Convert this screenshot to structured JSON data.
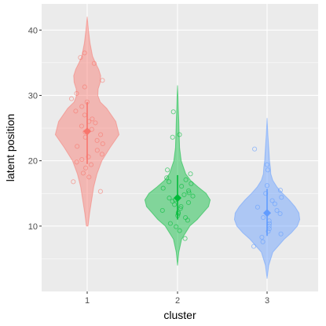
{
  "chart_data": {
    "type": "violin",
    "xlabel": "cluster",
    "ylabel": "latent position",
    "categories": [
      "1",
      "2",
      "3"
    ],
    "ylim": [
      0,
      44
    ],
    "yticks": [
      10,
      20,
      30,
      40
    ],
    "grid": true,
    "legend": "none",
    "background": "#EBEBEB",
    "grid_color": "#FFFFFF",
    "series": [
      {
        "category": "1",
        "color": "#F8766D",
        "mean": 24.5,
        "interval": [
          19.5,
          29.0
        ],
        "density_y": [
          10,
          12,
          14,
          16,
          18,
          20,
          22,
          24,
          26,
          28,
          29,
          30,
          31,
          32,
          33,
          34,
          35,
          36,
          38,
          40,
          42
        ],
        "density_width": [
          0.02,
          0.06,
          0.11,
          0.16,
          0.24,
          0.36,
          0.56,
          0.78,
          0.7,
          0.48,
          0.32,
          0.26,
          0.27,
          0.32,
          0.33,
          0.28,
          0.2,
          0.13,
          0.07,
          0.03,
          0.0
        ],
        "points": [
          15.3,
          16.8,
          17.5,
          18.1,
          18.9,
          19.4,
          19.8,
          20.2,
          20.6,
          21.0,
          21.6,
          22.2,
          22.6,
          23.1,
          23.6,
          24.0,
          24.4,
          24.8,
          25.3,
          25.8,
          26.0,
          26.4,
          27.0,
          27.6,
          28.3,
          29.0,
          29.5,
          30.3,
          31.3,
          32.3,
          34.9,
          35.8,
          36.5
        ]
      },
      {
        "category": "2",
        "color": "#00BA38",
        "mean": 14.3,
        "interval": [
          11.0,
          17.8
        ],
        "density_y": [
          4,
          6,
          8,
          10,
          11,
          12,
          13,
          14,
          15,
          16,
          17,
          18,
          20,
          22,
          24,
          26,
          28,
          30,
          31.5
        ],
        "density_width": [
          0.0,
          0.03,
          0.1,
          0.3,
          0.48,
          0.62,
          0.76,
          0.8,
          0.7,
          0.5,
          0.32,
          0.2,
          0.09,
          0.05,
          0.04,
          0.03,
          0.02,
          0.01,
          0.0
        ],
        "points": [
          8.1,
          9.3,
          9.9,
          10.4,
          10.9,
          11.3,
          11.6,
          11.9,
          12.1,
          12.4,
          12.7,
          13.0,
          13.3,
          13.6,
          13.8,
          14.0,
          14.3,
          14.6,
          14.8,
          15.1,
          15.4,
          15.8,
          16.1,
          16.5,
          16.8,
          17.1,
          17.4,
          18.0,
          18.6,
          23.6,
          24.0,
          27.5
        ]
      },
      {
        "category": "3",
        "color": "#619CFF",
        "mean": 12.0,
        "interval": [
          8.5,
          15.7
        ],
        "density_y": [
          2,
          4,
          6,
          8,
          9,
          10,
          11,
          12,
          13,
          14,
          15,
          16,
          17,
          18,
          19,
          20,
          22,
          24,
          26.5
        ],
        "density_width": [
          0.0,
          0.04,
          0.14,
          0.42,
          0.6,
          0.74,
          0.8,
          0.78,
          0.68,
          0.54,
          0.38,
          0.24,
          0.14,
          0.09,
          0.08,
          0.06,
          0.04,
          0.02,
          0.0
        ],
        "points": [
          6.9,
          7.6,
          8.3,
          8.8,
          9.2,
          9.6,
          10.0,
          10.4,
          10.8,
          11.3,
          11.9,
          12.4,
          12.9,
          13.4,
          13.9,
          14.4,
          15.0,
          15.5,
          16.2,
          18.6,
          19.4,
          21.8
        ]
      }
    ]
  }
}
